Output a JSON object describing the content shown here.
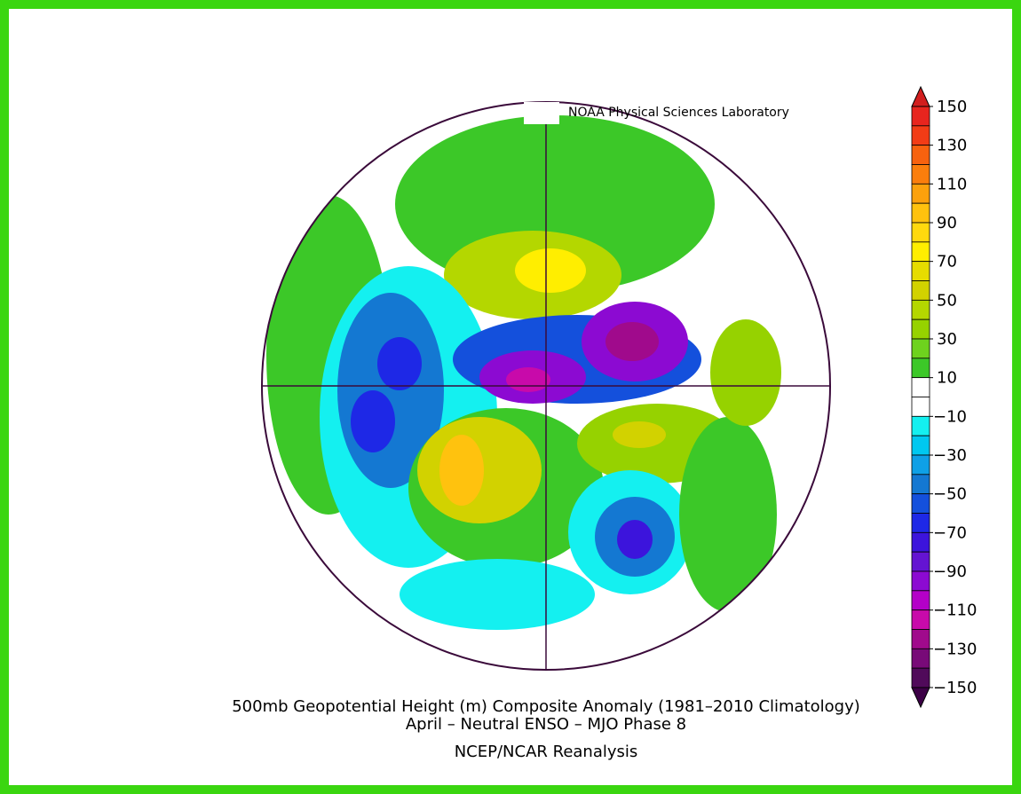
{
  "header": {
    "credit": "NOAA Physical Sciences Laboratory"
  },
  "colorbar": {
    "ticks": [
      150,
      130,
      110,
      90,
      70,
      50,
      30,
      10,
      {
        "value": -10,
        "label": "−10"
      },
      {
        "value": -30,
        "label": "−30"
      },
      {
        "value": -50,
        "label": "−50"
      },
      {
        "value": -70,
        "label": "−70"
      },
      {
        "value": -90,
        "label": "−90"
      },
      {
        "value": -110,
        "label": "−110"
      },
      {
        "value": -130,
        "label": "−130"
      },
      {
        "value": -150,
        "label": "−150"
      }
    ],
    "colors": [
      "#e8251e",
      "#f23c16",
      "#f7620f",
      "#fb7e0c",
      "#fca10c",
      "#ffc20e",
      "#ffd90e",
      "#ffee00",
      "#e6dc00",
      "#d2d200",
      "#b4d700",
      "#96d200",
      "#6ed21e",
      "#3cc828",
      "#ffffff",
      "#ffffff",
      "#14f0f0",
      "#00c8f0",
      "#0fa0e6",
      "#1478d2",
      "#1450dc",
      "#1e28e6",
      "#3c14dc",
      "#6414d2",
      "#8c0ad2",
      "#b400c8",
      "#c80aaa",
      "#a00a8c",
      "#780a78",
      "#500a5a"
    ],
    "over_color": "#d21e1e",
    "under_color": "#3c0046"
  },
  "footer": {
    "title": "500mb Geopotential Height (m) Composite Anomaly (1981–2010 Climatology)",
    "subtitle": "April – Neutral ENSO – MJO Phase 8",
    "source": "NCEP/NCAR Reanalysis"
  }
}
